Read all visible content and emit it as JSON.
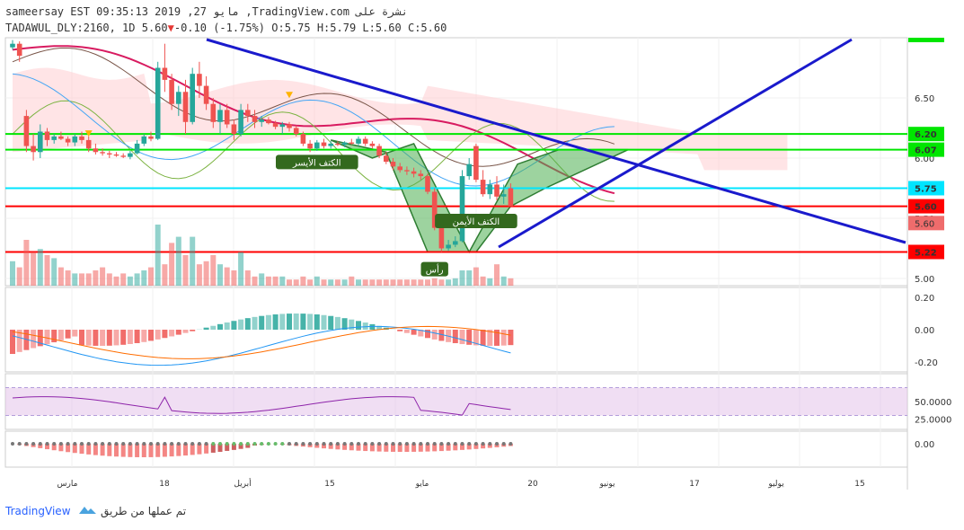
{
  "header": {
    "line1": "sameersay EST 09:35:13 2019 ,27 مايو ,TradingView.com نشرة على",
    "line2_prefix": "TADAWUL_DLY:2160, 1D 5.60",
    "line2_change": "-0.10 (-1.75%)",
    "line2_ohlc": "O:5.75 H:5.79 L:5.60 C:5.60"
  },
  "colors": {
    "up": "#26a69a",
    "down": "#ef5350",
    "trendline": "#1a1acc",
    "pattern_fill": "#4caf50",
    "label_bg": "#33691e",
    "cloud_red": "#ffcdd2",
    "cloud_green": "#c8e6c9"
  },
  "footer": {
    "brand": "TradingView",
    "credit": "تم عملها من طريق"
  },
  "chart_data": {
    "type": "candlestick",
    "price_axis": {
      "ticks": [
        5.0,
        5.5,
        6.0,
        6.5
      ],
      "range": [
        4.94,
        7.0
      ]
    },
    "x_axis_labels": [
      "مارس",
      "18",
      "أبريل",
      "15",
      "مايو",
      "20",
      "يونيو",
      "17",
      "يوليو",
      "15"
    ],
    "candles": [
      [
        6.92,
        6.98,
        6.9,
        6.95
      ],
      [
        6.95,
        6.97,
        6.8,
        6.85
      ],
      [
        6.35,
        6.4,
        6.05,
        6.1
      ],
      [
        6.1,
        6.2,
        5.98,
        6.05
      ],
      [
        6.05,
        6.28,
        6.0,
        6.22
      ],
      [
        6.22,
        6.25,
        6.1,
        6.15
      ],
      [
        6.15,
        6.2,
        6.12,
        6.18
      ],
      [
        6.18,
        6.22,
        6.15,
        6.16
      ],
      [
        6.16,
        6.18,
        6.1,
        6.13
      ],
      [
        6.13,
        6.2,
        6.1,
        6.18
      ],
      [
        6.18,
        6.22,
        6.12,
        6.15
      ],
      [
        6.15,
        6.18,
        6.05,
        6.08
      ],
      [
        6.08,
        6.12,
        6.03,
        6.05
      ],
      [
        6.05,
        6.08,
        6.02,
        6.04
      ],
      [
        6.04,
        6.06,
        6.0,
        6.03
      ],
      [
        6.03,
        6.05,
        6.01,
        6.02
      ],
      [
        6.02,
        6.04,
        6.0,
        6.01
      ],
      [
        6.01,
        6.06,
        5.99,
        6.04
      ],
      [
        6.04,
        6.15,
        6.03,
        6.12
      ],
      [
        6.12,
        6.2,
        6.1,
        6.18
      ],
      [
        6.18,
        6.22,
        6.14,
        6.16
      ],
      [
        6.16,
        6.8,
        6.15,
        6.75
      ],
      [
        6.75,
        6.95,
        6.55,
        6.65
      ],
      [
        6.65,
        6.7,
        6.4,
        6.45
      ],
      [
        6.45,
        6.6,
        6.35,
        6.55
      ],
      [
        6.55,
        6.65,
        6.2,
        6.3
      ],
      [
        6.3,
        6.75,
        6.28,
        6.7
      ],
      [
        6.7,
        6.8,
        6.5,
        6.6
      ],
      [
        6.6,
        6.68,
        6.4,
        6.45
      ],
      [
        6.45,
        6.5,
        6.25,
        6.3
      ],
      [
        6.3,
        6.45,
        6.2,
        6.4
      ],
      [
        6.4,
        6.45,
        6.25,
        6.28
      ],
      [
        6.28,
        6.32,
        6.15,
        6.2
      ],
      [
        6.2,
        6.45,
        6.18,
        6.4
      ],
      [
        6.4,
        6.45,
        6.3,
        6.35
      ],
      [
        6.35,
        6.4,
        6.25,
        6.3
      ],
      [
        6.3,
        6.35,
        6.26,
        6.32
      ],
      [
        6.32,
        6.34,
        6.28,
        6.29
      ],
      [
        6.29,
        6.31,
        6.24,
        6.26
      ],
      [
        6.26,
        6.3,
        6.2,
        6.28
      ],
      [
        6.28,
        6.3,
        6.22,
        6.25
      ],
      [
        6.25,
        6.27,
        6.18,
        6.2
      ],
      [
        6.2,
        6.22,
        6.1,
        6.12
      ],
      [
        6.12,
        6.15,
        6.05,
        6.08
      ],
      [
        6.08,
        6.15,
        6.06,
        6.13
      ],
      [
        6.13,
        6.16,
        6.08,
        6.1
      ],
      [
        6.1,
        6.14,
        6.08,
        6.12
      ],
      [
        6.12,
        6.14,
        6.1,
        6.11
      ],
      [
        6.11,
        6.14,
        6.09,
        6.13
      ],
      [
        6.13,
        6.16,
        6.11,
        6.12
      ],
      [
        6.12,
        6.18,
        6.1,
        6.16
      ],
      [
        6.16,
        6.18,
        6.1,
        6.12
      ],
      [
        6.12,
        6.14,
        6.08,
        6.1
      ],
      [
        6.1,
        6.12,
        6.0,
        6.02
      ],
      [
        6.02,
        6.05,
        5.95,
        5.97
      ],
      [
        5.97,
        6.0,
        5.9,
        5.93
      ],
      [
        5.93,
        5.96,
        5.88,
        5.9
      ],
      [
        5.9,
        5.93,
        5.86,
        5.89
      ],
      [
        5.89,
        5.92,
        5.84,
        5.87
      ],
      [
        5.87,
        5.9,
        5.82,
        5.85
      ],
      [
        5.85,
        5.87,
        5.7,
        5.72
      ],
      [
        5.72,
        5.75,
        5.4,
        5.42
      ],
      [
        5.42,
        5.5,
        5.22,
        5.25
      ],
      [
        5.25,
        5.32,
        5.23,
        5.28
      ],
      [
        5.28,
        5.35,
        5.26,
        5.31
      ],
      [
        5.31,
        5.9,
        5.3,
        5.85
      ],
      [
        5.85,
        6.0,
        5.82,
        5.95
      ],
      [
        6.1,
        6.12,
        5.8,
        5.82
      ],
      [
        5.82,
        5.9,
        5.68,
        5.7
      ],
      [
        5.7,
        5.82,
        5.66,
        5.78
      ],
      [
        5.78,
        5.85,
        5.65,
        5.68
      ],
      [
        5.68,
        5.78,
        5.62,
        5.7
      ],
      [
        5.75,
        5.79,
        5.6,
        5.6
      ]
    ],
    "volume": [
      0.4,
      0.3,
      0.75,
      0.55,
      0.6,
      0.5,
      0.45,
      0.3,
      0.25,
      0.2,
      0.2,
      0.2,
      0.25,
      0.3,
      0.2,
      0.15,
      0.2,
      0.15,
      0.2,
      0.25,
      0.3,
      1.0,
      0.35,
      0.7,
      0.8,
      0.5,
      0.8,
      0.35,
      0.4,
      0.5,
      0.35,
      0.3,
      0.25,
      0.55,
      0.25,
      0.15,
      0.2,
      0.15,
      0.15,
      0.15,
      0.1,
      0.1,
      0.15,
      0.1,
      0.15,
      0.1,
      0.1,
      0.1,
      0.1,
      0.15,
      0.1,
      0.1,
      0.1,
      0.1,
      0.1,
      0.1,
      0.1,
      0.1,
      0.1,
      0.1,
      0.1,
      0.12,
      0.1,
      0.1,
      0.12,
      0.25,
      0.25,
      0.3,
      0.15,
      0.12,
      0.35,
      0.15,
      0.12
    ],
    "horizontal_levels": [
      {
        "price": 6.2,
        "label": "6.20",
        "color": "#00e600"
      },
      {
        "price": 6.07,
        "label": "6.07",
        "color": "#00e600"
      },
      {
        "price": 5.75,
        "label": "5.75",
        "color": "#00e5ff"
      },
      {
        "price": 5.6,
        "label": "5.60",
        "color": "#ff0000"
      },
      {
        "price": 5.22,
        "label": "5.22",
        "color": "#ff0000"
      }
    ],
    "price_tags": [
      {
        "label": "5.60",
        "price": 5.46,
        "color": "#ef6c6c"
      }
    ],
    "pattern_labels": [
      {
        "text": "الكتف الأيسر",
        "idx": 44,
        "price": 5.96
      },
      {
        "text": "رأس",
        "idx": 61,
        "price": 5.07
      },
      {
        "text": "الكتف الأيمن",
        "idx": 67,
        "price": 5.47
      }
    ],
    "macd": {
      "ticks": [
        "0.20",
        "0.00",
        "-0.20"
      ],
      "range": [
        -0.25,
        0.25
      ]
    },
    "rsi": {
      "ticks": [
        "50.0000",
        "25.0000"
      ],
      "range": [
        10,
        90
      ]
    },
    "osc3": {
      "ticks": [
        "0.00"
      ]
    }
  }
}
